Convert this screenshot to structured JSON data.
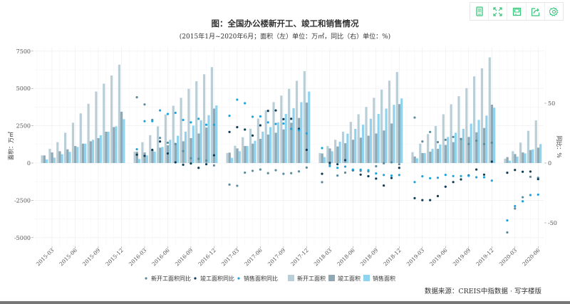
{
  "toolbar": {
    "icons": [
      "mobile-icon",
      "fullscreen-icon",
      "save-icon",
      "share-icon",
      "gear-icon"
    ],
    "color": "#3cc47c"
  },
  "chart_data": {
    "type": "bar+scatter",
    "title": "图：全国办公楼新开工、竣工和销售情况",
    "subtitle": "(2015年1月~2020年6月；面积（左）单位：万㎡，同比（右）单位：%)",
    "ylabel_left": "面积：万㎡",
    "ylabel_right": "同比：%",
    "ylim_left": [
      -5000,
      7500
    ],
    "ylim_right": [
      -62.5,
      93.5
    ],
    "yticks_left": [
      "7500",
      "5000",
      "2500",
      "0",
      "-2500",
      "-5000"
    ],
    "yticks_left_values": [
      7500,
      5000,
      2500,
      0,
      -2500,
      -5000
    ],
    "yticks_right": [
      "50",
      "0",
      "-50"
    ],
    "yticks_right_values": [
      50,
      0,
      -50
    ],
    "grid": true,
    "legend_position": "bottom",
    "source": "数据来源：CREIS中指数据 · 写字楼版",
    "x_ticks": [
      "2015-03",
      "2015-06",
      "2015-09",
      "2015-12",
      "2016-03",
      "2016-06",
      "2016-09",
      "2016-12",
      "2017-03",
      "2017-06",
      "2017-09",
      "2017-12",
      "2018-03",
      "2018-06",
      "2018-09",
      "2018-12",
      "2019-03",
      "2019-06",
      "2019-09",
      "2019-12",
      "2020-03",
      "2020-06"
    ],
    "x": [
      "2015-02",
      "2015-03",
      "2015-04",
      "2015-05",
      "2015-06",
      "2015-07",
      "2015-08",
      "2015-09",
      "2015-10",
      "2015-11",
      "2015-12",
      "2016-02",
      "2016-03",
      "2016-04",
      "2016-05",
      "2016-06",
      "2016-07",
      "2016-08",
      "2016-09",
      "2016-10",
      "2016-11",
      "2016-12",
      "2017-02",
      "2017-03",
      "2017-04",
      "2017-05",
      "2017-06",
      "2017-07",
      "2017-08",
      "2017-09",
      "2017-10",
      "2017-11",
      "2017-12",
      "2018-02",
      "2018-03",
      "2018-04",
      "2018-05",
      "2018-06",
      "2018-07",
      "2018-08",
      "2018-09",
      "2018-10",
      "2018-11",
      "2018-12",
      "2019-02",
      "2019-03",
      "2019-04",
      "2019-05",
      "2019-06",
      "2019-07",
      "2019-08",
      "2019-09",
      "2019-10",
      "2019-11",
      "2019-12",
      "2020-02",
      "2020-03",
      "2020-04",
      "2020-05",
      "2020-06"
    ],
    "bar_series": [
      {
        "name": "新开工面积",
        "color": "#b9ced7",
        "values": [
          510,
          950,
          1400,
          2030,
          2700,
          3330,
          3970,
          4790,
          5320,
          5870,
          6590,
          760,
          1400,
          1870,
          2460,
          3250,
          3840,
          4370,
          4970,
          5480,
          5950,
          6430,
          670,
          1160,
          1730,
          2300,
          2980,
          3520,
          4080,
          4520,
          4970,
          5510,
          6160,
          670,
          1140,
          1560,
          2100,
          2760,
          3270,
          3760,
          4370,
          4920,
          5520,
          6100,
          730,
          1300,
          1940,
          2480,
          3270,
          3940,
          4480,
          5020,
          5810,
          6350,
          7080,
          290,
          790,
          1370,
          2160,
          2860
        ]
      },
      {
        "name": "竣工面积",
        "color": "#90a8b3",
        "values": [
          510,
          710,
          790,
          920,
          1140,
          1300,
          1460,
          1670,
          2100,
          2410,
          3440,
          760,
          710,
          870,
          1030,
          1190,
          1300,
          1460,
          1670,
          1980,
          2380,
          3650,
          700,
          980,
          1140,
          1300,
          1620,
          1910,
          2030,
          2250,
          2700,
          3020,
          4050,
          640,
          980,
          1110,
          1330,
          1560,
          1700,
          1830,
          1980,
          2180,
          2650,
          3950,
          440,
          670,
          760,
          950,
          1210,
          1400,
          1680,
          1750,
          2060,
          2350,
          3910,
          400,
          600,
          710,
          870,
          1030
        ]
      },
      {
        "name": "销售面积",
        "color": "#90d3ee",
        "values": [
          240,
          370,
          590,
          750,
          1080,
          1300,
          1560,
          1860,
          2100,
          2460,
          2940,
          270,
          510,
          760,
          1080,
          1560,
          1830,
          2100,
          2510,
          2860,
          3210,
          3860,
          350,
          790,
          1140,
          1490,
          2100,
          2410,
          2730,
          3290,
          3680,
          4080,
          4790,
          400,
          790,
          1430,
          1970,
          2290,
          2570,
          2970,
          3290,
          3650,
          3900,
          4330,
          320,
          670,
          950,
          1240,
          1750,
          2030,
          2290,
          2640,
          2890,
          3180,
          3710,
          160,
          430,
          650,
          910,
          1270
        ]
      }
    ],
    "point_series": [
      {
        "name": "新开工面积同比",
        "color": "#5b8b9c",
        "values": [
          null,
          null,
          null,
          null,
          null,
          null,
          null,
          null,
          null,
          null,
          null,
          55,
          49,
          36,
          21,
          17,
          16,
          10,
          4,
          3.5,
          2,
          -2,
          -18,
          -19,
          -8,
          -6.5,
          -5.4,
          -8.5,
          -6,
          -9,
          -8.5,
          -7,
          -3.8,
          -16,
          -1,
          -10.5,
          -8,
          -6,
          -6.5,
          -7,
          -2.7,
          -0.2,
          0.6,
          -1,
          38,
          18,
          26,
          17.5,
          19.4,
          21.8,
          20,
          15.9,
          18.7,
          15.9,
          17,
          -58,
          -38,
          -28.6,
          -11.5,
          -12.3
        ]
      },
      {
        "name": "竣工面积同比",
        "color": "#0f3c56",
        "values": [
          null,
          null,
          null,
          null,
          null,
          null,
          null,
          null,
          null,
          null,
          null,
          7,
          6,
          11,
          18,
          8,
          0.6,
          -1.4,
          -0.4,
          -4,
          -1,
          6.5,
          26,
          30,
          28,
          23,
          31.5,
          43.6,
          44,
          36.7,
          37,
          28.6,
          11,
          -9,
          0.2,
          -1,
          2.4,
          -6,
          -9.7,
          -11,
          -13,
          -18.8,
          -12.5,
          -4,
          -29.4,
          -31,
          -31,
          -27.6,
          -19.8,
          -15.9,
          -13.7,
          -10.3,
          -5.4,
          -9.7,
          1.2,
          -8.1,
          -5.8,
          -7.3,
          -7.1,
          -13.5
        ]
      },
      {
        "name": "销售面积同比",
        "color": "#1ea4dc",
        "values": [
          null,
          null,
          null,
          null,
          null,
          null,
          null,
          null,
          null,
          null,
          null,
          11.5,
          35,
          35,
          44,
          41,
          42,
          36,
          34,
          37,
          32,
          32,
          39.5,
          53,
          50,
          38.7,
          39,
          34,
          32.7,
          33,
          28.6,
          27.4,
          24.8,
          12.5,
          -2.5,
          -4,
          -3,
          -5.5,
          -5.6,
          -6,
          -8.7,
          -10,
          -10.5,
          -10,
          -15.9,
          -11.1,
          -12.7,
          -12.3,
          -9.9,
          -10.9,
          -10.9,
          -10.7,
          -11.9,
          -11.9,
          -14.7,
          -48,
          -36,
          -32,
          -26.8,
          -26.4
        ]
      }
    ]
  }
}
